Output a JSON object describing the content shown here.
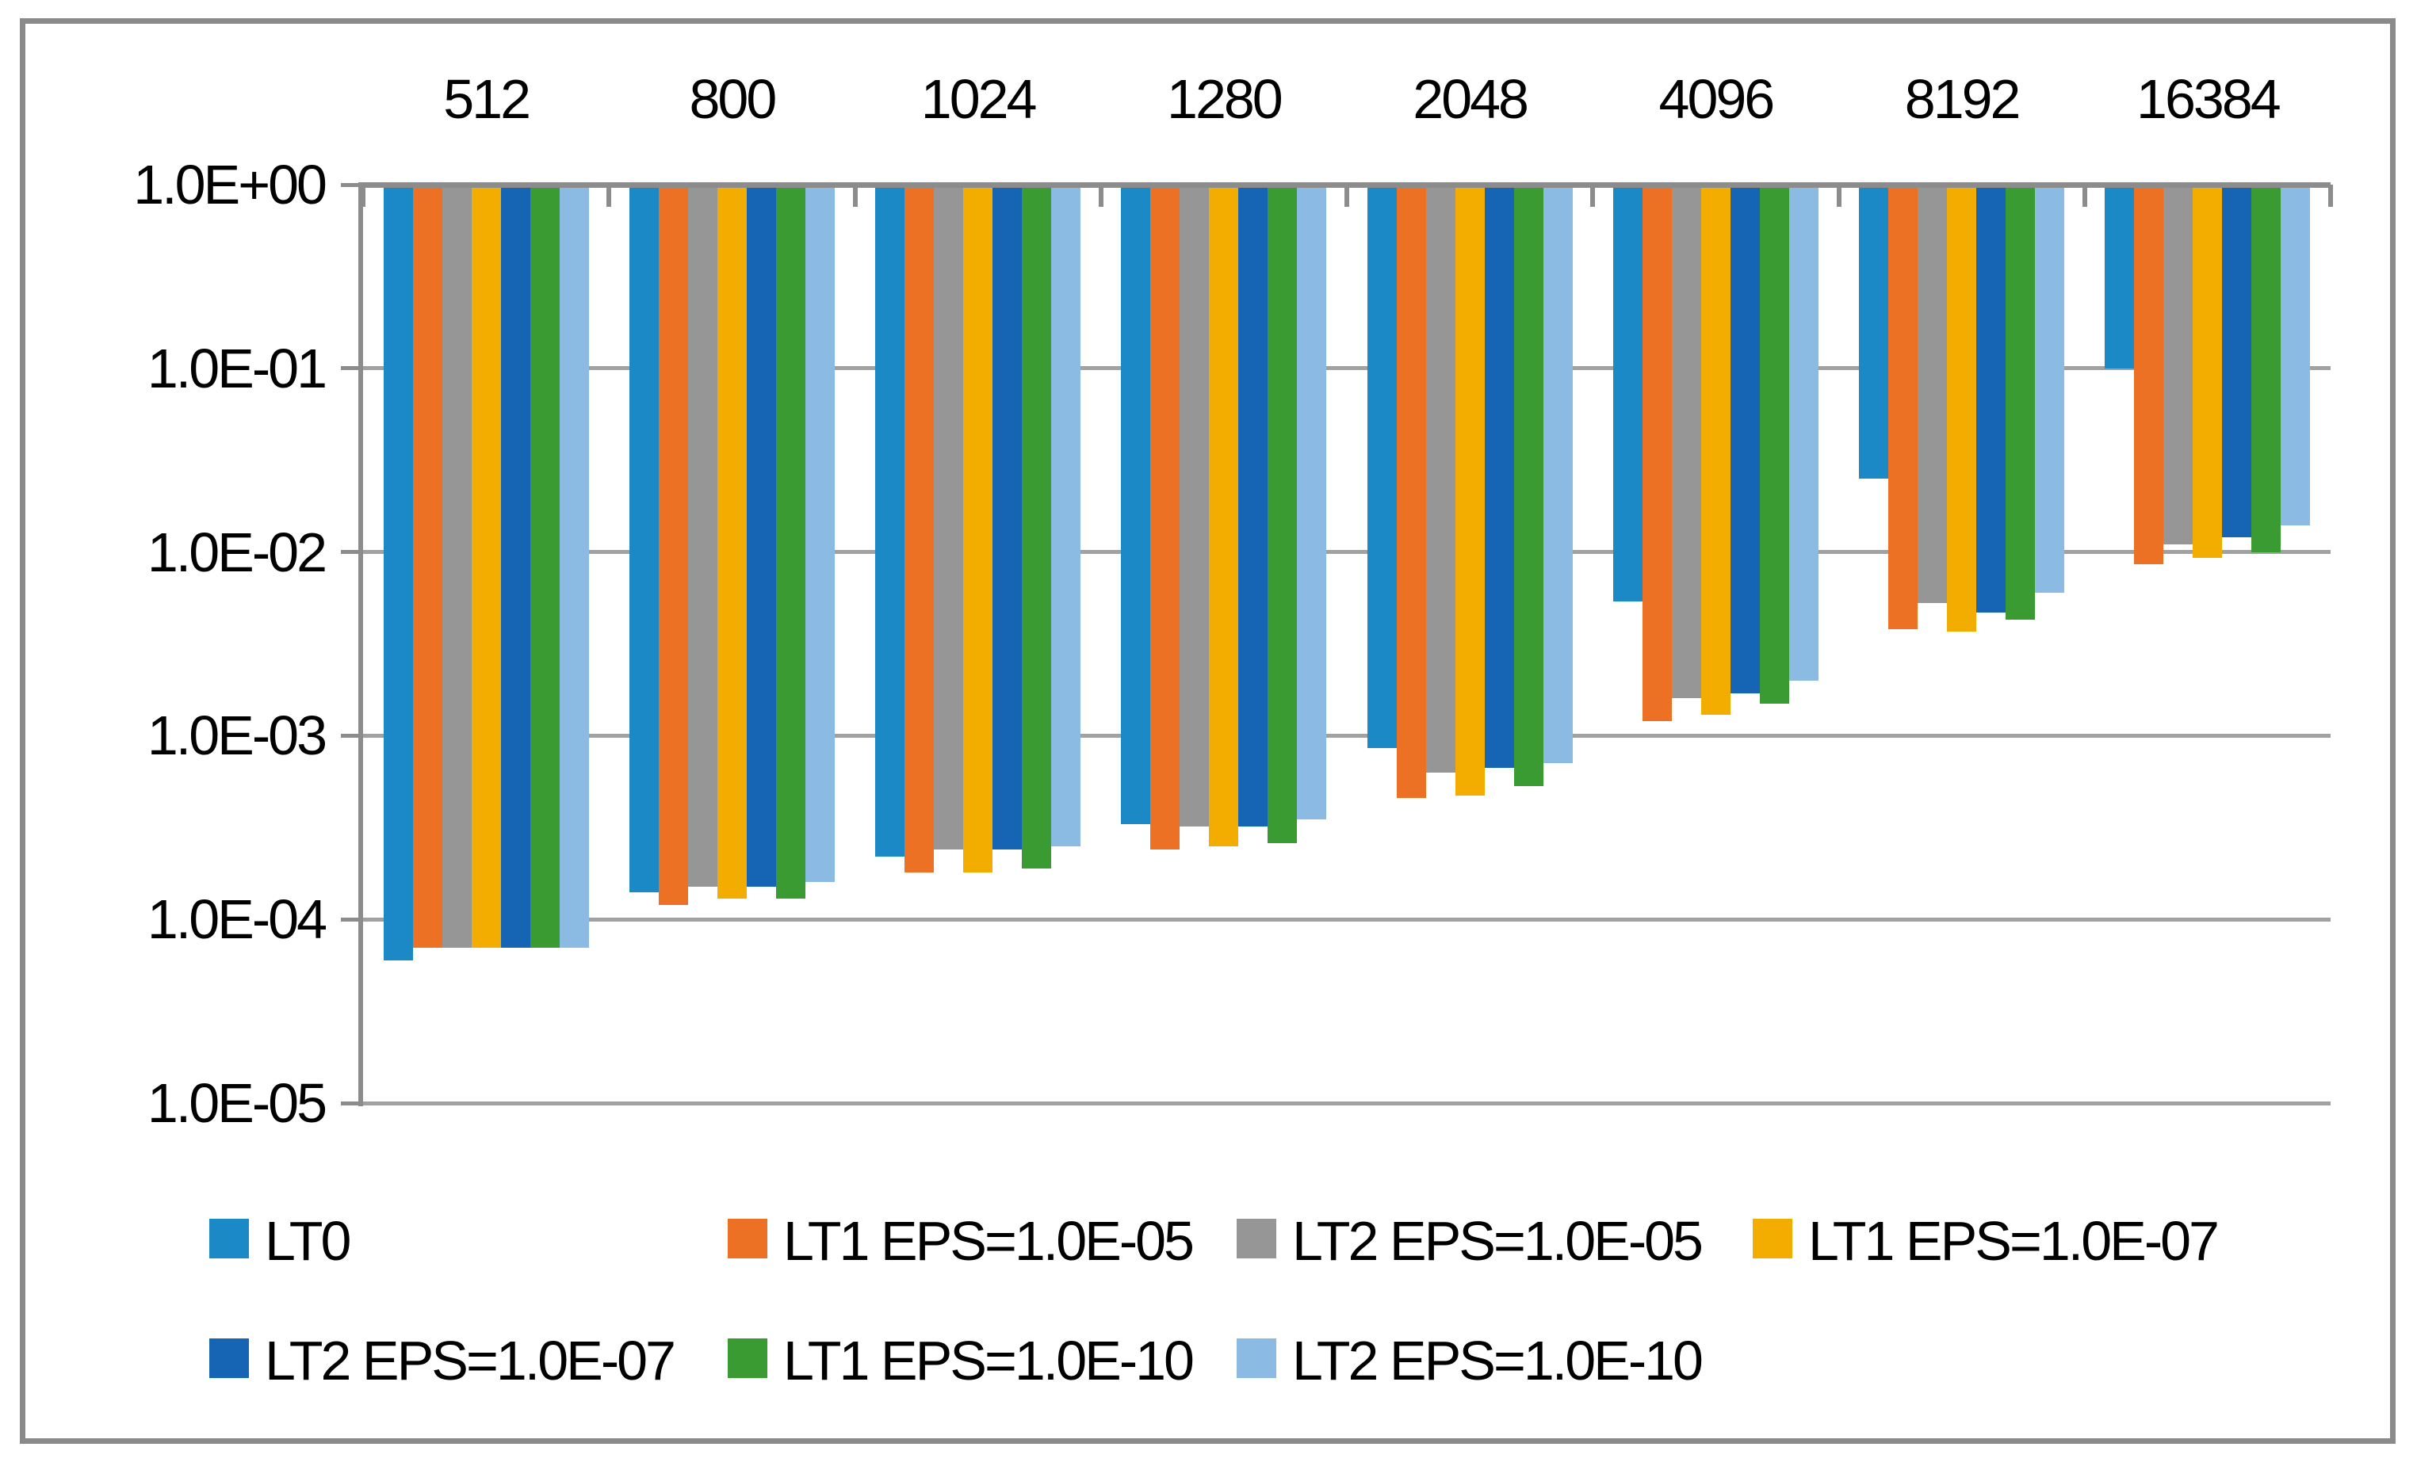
{
  "chart_data": {
    "type": "bar",
    "scale": "log",
    "title": "",
    "xlabel": "",
    "ylabel": "",
    "categories": [
      "512",
      "800",
      "1024",
      "1280",
      "2048",
      "4096",
      "8192",
      "16384"
    ],
    "series": [
      {
        "name": "LT0",
        "color": "#1A89C5",
        "values": [
          6e-05,
          0.00014,
          0.00022,
          0.00033,
          0.00086,
          0.0054,
          0.025,
          0.1
        ]
      },
      {
        "name": "LT1 EPS=1.0E-05",
        "color": "#EC7124",
        "values": [
          7e-05,
          0.00012,
          0.00018,
          0.00024,
          0.00046,
          0.0012,
          0.0038,
          0.0086
        ]
      },
      {
        "name": "LT2 EPS=1.0E-05",
        "color": "#969696",
        "values": [
          7e-05,
          0.00015,
          0.00024,
          0.00032,
          0.00063,
          0.0016,
          0.0053,
          0.011
        ]
      },
      {
        "name": "LT1 EPS=1.0E-07",
        "color": "#F2AD00",
        "values": [
          7e-05,
          0.00013,
          0.00018,
          0.00025,
          0.00047,
          0.0013,
          0.0037,
          0.0093
        ]
      },
      {
        "name": "LT2 EPS=1.0E-07",
        "color": "#1565B4",
        "values": [
          7e-05,
          0.00015,
          0.00024,
          0.00032,
          0.00067,
          0.0017,
          0.0047,
          0.012
        ]
      },
      {
        "name": "LT1 EPS=1.0E-10",
        "color": "#3B9B33",
        "values": [
          7e-05,
          0.00013,
          0.00019,
          0.00026,
          0.00053,
          0.0015,
          0.0043,
          0.01
        ]
      },
      {
        "name": "LT2 EPS=1.0E-10",
        "color": "#8BBAE3",
        "values": [
          7e-05,
          0.00016,
          0.00025,
          0.00035,
          0.00071,
          0.002,
          0.006,
          0.014
        ]
      }
    ],
    "y_axis": {
      "ticks": [
        "1.0E+00",
        "1.0E-01",
        "1.0E-02",
        "1.0E-03",
        "1.0E-04",
        "1.0E-05"
      ],
      "min": 1e-05,
      "max": 1.0,
      "baseline": 1.0
    },
    "bar_base": "top",
    "grid": true,
    "legend_position": "bottom",
    "legend_rows": [
      [
        0,
        1,
        2,
        3
      ],
      [
        4,
        5,
        6
      ]
    ],
    "axis_color": "#8C8C8C",
    "gridline_color": "#A1A1A1",
    "frame_color": "#8A8A8A",
    "background_color": "#FFFFFF"
  }
}
